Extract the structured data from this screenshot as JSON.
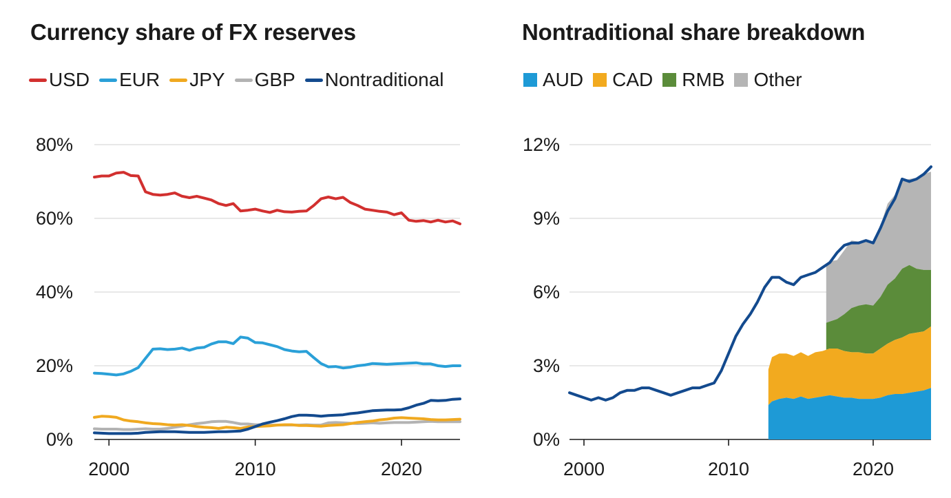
{
  "chart_data": [
    {
      "type": "line",
      "title": "Currency share of FX reserves",
      "xlabel": "",
      "ylabel": "",
      "xlim": [
        1999,
        2024
      ],
      "ylim": [
        0,
        80
      ],
      "x_ticks": [
        2000,
        2010,
        2020
      ],
      "x_tick_labels": [
        "2000",
        "2010",
        "2020"
      ],
      "y_ticks": [
        0,
        20,
        40,
        60,
        80
      ],
      "y_tick_labels": [
        "0%",
        "20%",
        "40%",
        "60%",
        "80%"
      ],
      "grid": "horizontal",
      "legend_position": "top-left",
      "series": [
        {
          "name": "USD",
          "color": "#d2302f",
          "x": [
            1999,
            1999.5,
            2000,
            2000.5,
            2001,
            2001.5,
            2002,
            2002.5,
            2003,
            2003.5,
            2004,
            2004.5,
            2005,
            2005.5,
            2006,
            2006.5,
            2007,
            2007.5,
            2008,
            2008.5,
            2009,
            2009.5,
            2010,
            2010.5,
            2011,
            2011.5,
            2012,
            2012.5,
            2013,
            2013.5,
            2014,
            2014.5,
            2015,
            2015.5,
            2016,
            2016.5,
            2017,
            2017.5,
            2018,
            2018.5,
            2019,
            2019.5,
            2020,
            2020.5,
            2021,
            2021.5,
            2022,
            2022.5,
            2023,
            2023.5,
            2024
          ],
          "y": [
            71.2,
            71.5,
            71.5,
            72.3,
            72.5,
            71.6,
            71.5,
            67.2,
            66.5,
            66.3,
            66.5,
            66.9,
            66.0,
            65.6,
            66.0,
            65.5,
            65.0,
            64.0,
            63.5,
            64.0,
            62.0,
            62.2,
            62.5,
            62.0,
            61.6,
            62.2,
            61.8,
            61.7,
            61.9,
            62.0,
            63.5,
            65.3,
            65.8,
            65.3,
            65.7,
            64.3,
            63.5,
            62.5,
            62.2,
            61.9,
            61.7,
            61.0,
            61.5,
            59.5,
            59.2,
            59.4,
            59.0,
            59.5,
            59.0,
            59.3,
            58.5
          ]
        },
        {
          "name": "EUR",
          "color": "#2aa0d8",
          "x": [
            1999,
            1999.5,
            2000,
            2000.5,
            2001,
            2001.5,
            2002,
            2002.5,
            2003,
            2003.5,
            2004,
            2004.5,
            2005,
            2005.5,
            2006,
            2006.5,
            2007,
            2007.5,
            2008,
            2008.5,
            2009,
            2009.5,
            2010,
            2010.5,
            2011,
            2011.5,
            2012,
            2012.5,
            2013,
            2013.5,
            2014,
            2014.5,
            2015,
            2015.5,
            2016,
            2016.5,
            2017,
            2017.5,
            2018,
            2018.5,
            2019,
            2019.5,
            2020,
            2020.5,
            2021,
            2021.5,
            2022,
            2022.5,
            2023,
            2023.5,
            2024
          ],
          "y": [
            18.0,
            17.9,
            17.7,
            17.5,
            17.8,
            18.5,
            19.5,
            22.0,
            24.5,
            24.6,
            24.4,
            24.5,
            24.8,
            24.2,
            24.8,
            25.0,
            25.9,
            26.5,
            26.5,
            26.0,
            27.8,
            27.5,
            26.3,
            26.2,
            25.7,
            25.2,
            24.4,
            24.0,
            23.8,
            23.9,
            22.2,
            20.6,
            19.7,
            19.8,
            19.4,
            19.6,
            20.0,
            20.2,
            20.6,
            20.5,
            20.4,
            20.5,
            20.6,
            20.7,
            20.8,
            20.5,
            20.5,
            20.0,
            19.8,
            20.0,
            20.0
          ]
        },
        {
          "name": "JPY",
          "color": "#f0a920",
          "x": [
            1999,
            1999.5,
            2000,
            2000.5,
            2001,
            2001.5,
            2002,
            2002.5,
            2003,
            2003.5,
            2004,
            2004.5,
            2005,
            2005.5,
            2006,
            2006.5,
            2007,
            2007.5,
            2008,
            2008.5,
            2009,
            2009.5,
            2010,
            2010.5,
            2011,
            2011.5,
            2012,
            2012.5,
            2013,
            2013.5,
            2014,
            2014.5,
            2015,
            2015.5,
            2016,
            2016.5,
            2017,
            2017.5,
            2018,
            2018.5,
            2019,
            2019.5,
            2020,
            2020.5,
            2021,
            2021.5,
            2022,
            2022.5,
            2023,
            2023.5,
            2024
          ],
          "y": [
            6.0,
            6.3,
            6.2,
            6.0,
            5.3,
            5.0,
            4.8,
            4.5,
            4.3,
            4.2,
            4.0,
            3.9,
            4.0,
            3.8,
            3.5,
            3.3,
            3.2,
            3.0,
            3.3,
            3.2,
            3.0,
            3.4,
            3.5,
            3.6,
            3.7,
            3.9,
            4.0,
            4.0,
            3.8,
            3.8,
            3.7,
            3.6,
            3.8,
            3.9,
            4.0,
            4.3,
            4.6,
            4.8,
            5.0,
            5.3,
            5.5,
            5.8,
            5.9,
            5.8,
            5.7,
            5.6,
            5.4,
            5.3,
            5.3,
            5.4,
            5.5
          ]
        },
        {
          "name": "GBP",
          "color": "#b3b3b3",
          "x": [
            1999,
            1999.5,
            2000,
            2000.5,
            2001,
            2001.5,
            2002,
            2002.5,
            2003,
            2003.5,
            2004,
            2004.5,
            2005,
            2005.5,
            2006,
            2006.5,
            2007,
            2007.5,
            2008,
            2008.5,
            2009,
            2009.5,
            2010,
            2010.5,
            2011,
            2011.5,
            2012,
            2012.5,
            2013,
            2013.5,
            2014,
            2014.5,
            2015,
            2015.5,
            2016,
            2016.5,
            2017,
            2017.5,
            2018,
            2018.5,
            2019,
            2019.5,
            2020,
            2020.5,
            2021,
            2021.5,
            2022,
            2022.5,
            2023,
            2023.5,
            2024
          ],
          "y": [
            2.9,
            2.8,
            2.8,
            2.8,
            2.7,
            2.7,
            2.8,
            2.9,
            2.8,
            2.8,
            3.0,
            3.3,
            3.6,
            4.0,
            4.3,
            4.5,
            4.8,
            4.9,
            4.9,
            4.6,
            4.2,
            4.2,
            4.0,
            4.0,
            3.9,
            3.9,
            3.9,
            3.9,
            3.9,
            4.0,
            3.9,
            3.9,
            4.5,
            4.6,
            4.5,
            4.4,
            4.3,
            4.4,
            4.5,
            4.4,
            4.5,
            4.6,
            4.6,
            4.6,
            4.7,
            4.8,
            4.9,
            4.8,
            4.8,
            4.8,
            4.8
          ]
        },
        {
          "name": "Nontraditional",
          "color": "#134a8e",
          "x": [
            1999,
            1999.5,
            2000,
            2000.5,
            2001,
            2001.5,
            2002,
            2002.5,
            2003,
            2003.5,
            2004,
            2004.5,
            2005,
            2005.5,
            2006,
            2006.5,
            2007,
            2007.5,
            2008,
            2008.5,
            2009,
            2009.5,
            2010,
            2010.5,
            2011,
            2011.5,
            2012,
            2012.5,
            2013,
            2013.5,
            2014,
            2014.5,
            2015,
            2015.5,
            2016,
            2016.5,
            2017,
            2017.5,
            2018,
            2018.5,
            2019,
            2019.5,
            2020,
            2020.5,
            2021,
            2021.5,
            2022,
            2022.5,
            2023,
            2023.5,
            2024
          ],
          "y": [
            1.8,
            1.7,
            1.6,
            1.6,
            1.6,
            1.6,
            1.7,
            1.9,
            2.0,
            2.1,
            2.1,
            2.1,
            2.0,
            1.9,
            1.9,
            1.9,
            2.0,
            2.1,
            2.1,
            2.2,
            2.3,
            2.8,
            3.5,
            4.2,
            4.7,
            5.1,
            5.6,
            6.2,
            6.6,
            6.6,
            6.5,
            6.3,
            6.5,
            6.6,
            6.7,
            7.0,
            7.2,
            7.5,
            7.8,
            7.9,
            8.0,
            8.0,
            8.1,
            8.6,
            9.3,
            9.8,
            10.6,
            10.5,
            10.6,
            10.9,
            11.0
          ]
        }
      ]
    },
    {
      "type": "area",
      "title": "Nontraditional share breakdown",
      "xlabel": "",
      "ylabel": "",
      "xlim": [
        1999,
        2024
      ],
      "ylim": [
        0,
        12
      ],
      "x_ticks": [
        2000,
        2010,
        2020
      ],
      "x_tick_labels": [
        "2000",
        "2010",
        "2020"
      ],
      "y_ticks": [
        0,
        3,
        6,
        9,
        12
      ],
      "y_tick_labels": [
        "0%",
        "3%",
        "6%",
        "9%",
        "12%"
      ],
      "grid": "horizontal",
      "legend_position": "top-left",
      "stacked": true,
      "series": [
        {
          "name": "AUD",
          "color": "#1e9ad6",
          "x": [
            2012.75,
            2013,
            2013.5,
            2014,
            2014.5,
            2015,
            2015.5,
            2016,
            2016.5,
            2017,
            2017.5,
            2018,
            2018.5,
            2019,
            2019.5,
            2020,
            2020.5,
            2021,
            2021.5,
            2022,
            2022.5,
            2023,
            2023.5,
            2024
          ],
          "y": [
            1.4,
            1.55,
            1.65,
            1.7,
            1.65,
            1.75,
            1.65,
            1.7,
            1.75,
            1.8,
            1.75,
            1.7,
            1.7,
            1.65,
            1.65,
            1.65,
            1.7,
            1.8,
            1.85,
            1.85,
            1.9,
            1.95,
            2.0,
            2.1
          ]
        },
        {
          "name": "CAD",
          "color": "#f2aa1f",
          "x": [
            2012.75,
            2013,
            2013.5,
            2014,
            2014.5,
            2015,
            2015.5,
            2016,
            2016.5,
            2017,
            2017.5,
            2018,
            2018.5,
            2019,
            2019.5,
            2020,
            2020.5,
            2021,
            2021.5,
            2022,
            2022.5,
            2023,
            2023.5,
            2024
          ],
          "y": [
            1.45,
            1.8,
            1.85,
            1.8,
            1.75,
            1.8,
            1.75,
            1.85,
            1.85,
            1.9,
            1.95,
            1.9,
            1.85,
            1.9,
            1.85,
            1.85,
            2.0,
            2.1,
            2.2,
            2.3,
            2.4,
            2.4,
            2.4,
            2.5
          ]
        },
        {
          "name": "RMB",
          "color": "#5b8c3a",
          "x": [
            2016.75,
            2017,
            2017.5,
            2018,
            2018.5,
            2019,
            2019.5,
            2020,
            2020.5,
            2021,
            2021.5,
            2022,
            2022.5,
            2023,
            2023.5,
            2024
          ],
          "y": [
            1.1,
            1.1,
            1.2,
            1.5,
            1.8,
            1.9,
            2.0,
            1.95,
            2.1,
            2.4,
            2.5,
            2.8,
            2.8,
            2.6,
            2.5,
            2.3
          ]
        },
        {
          "name": "Other",
          "color": "#b5b5b5",
          "x": [
            2016.75,
            2017,
            2017.5,
            2018,
            2018.5,
            2019,
            2019.5,
            2020,
            2020.5,
            2021,
            2021.5,
            2022,
            2022.5,
            2023,
            2023.5,
            2024
          ],
          "y": [
            2.4,
            2.45,
            2.4,
            2.6,
            2.75,
            2.6,
            2.6,
            2.55,
            2.9,
            3.3,
            3.4,
            3.6,
            3.5,
            3.7,
            3.9,
            4.0
          ]
        }
      ],
      "line": {
        "name": "Nontraditional",
        "color": "#134a8e",
        "x": [
          1999,
          1999.5,
          2000,
          2000.5,
          2001,
          2001.5,
          2002,
          2002.5,
          2003,
          2003.5,
          2004,
          2004.5,
          2005,
          2005.5,
          2006,
          2006.5,
          2007,
          2007.5,
          2008,
          2008.5,
          2009,
          2009.5,
          2010,
          2010.5,
          2011,
          2011.5,
          2012,
          2012.5,
          2013,
          2013.5,
          2014,
          2014.5,
          2015,
          2015.5,
          2016,
          2016.5,
          2017,
          2017.5,
          2018,
          2018.5,
          2019,
          2019.5,
          2020,
          2020.5,
          2021,
          2021.5,
          2022,
          2022.5,
          2023,
          2023.5,
          2024
        ],
        "y": [
          1.9,
          1.8,
          1.7,
          1.6,
          1.7,
          1.6,
          1.7,
          1.9,
          2.0,
          2.0,
          2.1,
          2.1,
          2.0,
          1.9,
          1.8,
          1.9,
          2.0,
          2.1,
          2.1,
          2.2,
          2.3,
          2.8,
          3.5,
          4.2,
          4.7,
          5.1,
          5.6,
          6.2,
          6.6,
          6.6,
          6.4,
          6.3,
          6.6,
          6.7,
          6.8,
          7.0,
          7.2,
          7.6,
          7.9,
          8.0,
          8.0,
          8.1,
          8.0,
          8.6,
          9.3,
          9.8,
          10.6,
          10.5,
          10.6,
          10.8,
          11.1
        ]
      }
    }
  ]
}
